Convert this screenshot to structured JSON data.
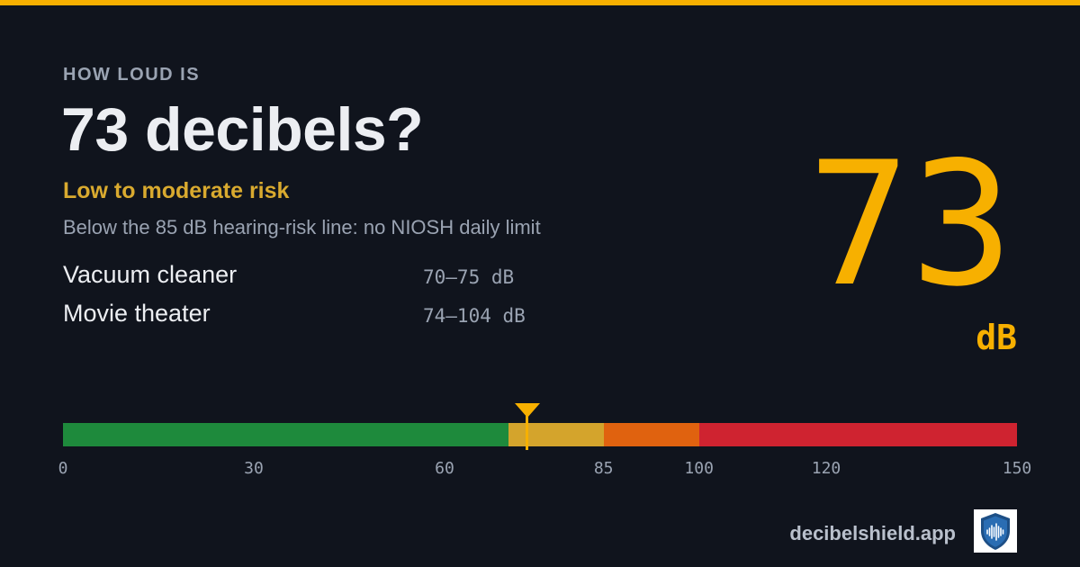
{
  "colors": {
    "accent": "#f7b000",
    "risk_label": "#d9aa2f",
    "zone_safe": "#1e8a3c",
    "zone_moderate": "#d4a42c",
    "zone_high": "#e0620f",
    "zone_danger": "#cf2330"
  },
  "header": {
    "eyebrow": "HOW LOUD IS",
    "title": "73 decibels?"
  },
  "risk": {
    "label": "Low to moderate risk",
    "description": "Below the 85 dB hearing-risk line: no NIOSH daily limit"
  },
  "examples": [
    {
      "name": "Vacuum cleaner",
      "range": "70–75 dB"
    },
    {
      "name": "Movie theater",
      "range": "74–104 dB"
    }
  ],
  "reading": {
    "value": "73",
    "unit": "dB"
  },
  "scale": {
    "min": 0,
    "max": 150,
    "current": 73,
    "zones": [
      {
        "from": 0,
        "to": 70,
        "color": "#1e8a3c"
      },
      {
        "from": 70,
        "to": 85,
        "color": "#d4a42c"
      },
      {
        "from": 85,
        "to": 100,
        "color": "#e0620f"
      },
      {
        "from": 100,
        "to": 150,
        "color": "#cf2330"
      }
    ],
    "ticks": [
      "0",
      "30",
      "60",
      "85",
      "100",
      "120",
      "150"
    ]
  },
  "footer": {
    "site": "decibelshield.app",
    "logo_icon": "shield-soundwave-icon"
  }
}
